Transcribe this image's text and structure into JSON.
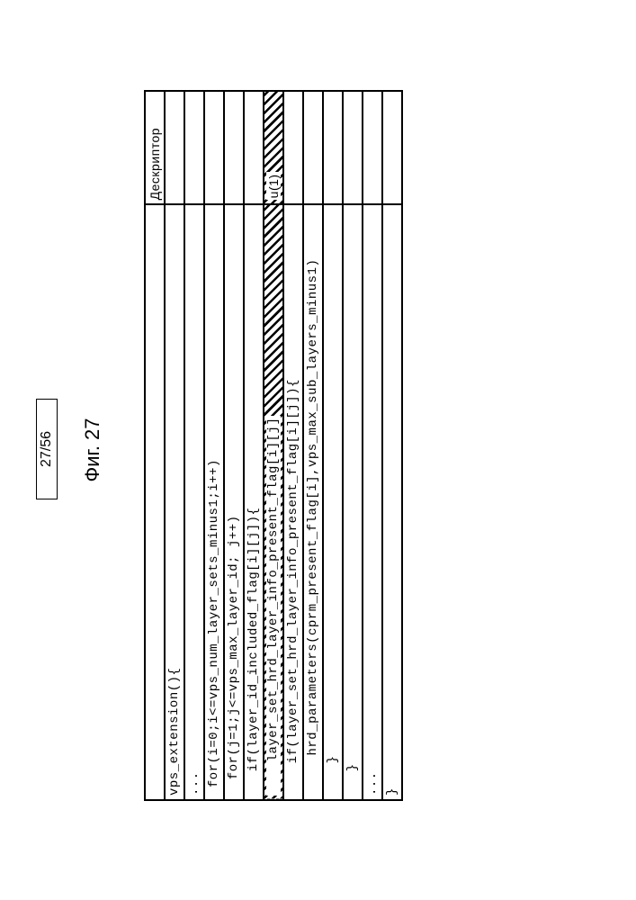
{
  "page_number": "27/56",
  "figure_label": "Фиг. 27",
  "table": {
    "descriptor_header": "Дескриптор",
    "rows": [
      {
        "code": "vps_extension(){",
        "desc": "",
        "indent": 0,
        "hatched": false
      },
      {
        "code": "...",
        "desc": "",
        "indent": 0,
        "hatched": false
      },
      {
        "code": " for(i=0;i<=vps_num_layer_sets_minus1;i++)",
        "desc": "",
        "indent": 0,
        "hatched": false
      },
      {
        "code": "  for(j=1;j<=vps_max_layer_id; j++)",
        "desc": "",
        "indent": 0,
        "hatched": false
      },
      {
        "code": "   if(layer_id_included_flag[i][j]){",
        "desc": "",
        "indent": 0,
        "hatched": false
      },
      {
        "code": "    layer_set_hrd_layer_info_present_flag[i][j]",
        "desc": "u(1)",
        "indent": 0,
        "hatched": true
      },
      {
        "code": "    if(layer_set_hrd_layer_info_present_flag[i][j]){",
        "desc": "",
        "indent": 0,
        "hatched": false
      },
      {
        "code": "     hrd_parameters(cprm_present_flag[i],vps_max_sub_layers_minus1)",
        "desc": "",
        "indent": 0,
        "hatched": false
      },
      {
        "code": "    }",
        "desc": "",
        "indent": 0,
        "hatched": false
      },
      {
        "code": "   }",
        "desc": "",
        "indent": 0,
        "hatched": false
      },
      {
        "code": "...",
        "desc": "",
        "indent": 0,
        "hatched": false
      },
      {
        "code": "}",
        "desc": "",
        "indent": 0,
        "hatched": false
      }
    ]
  }
}
